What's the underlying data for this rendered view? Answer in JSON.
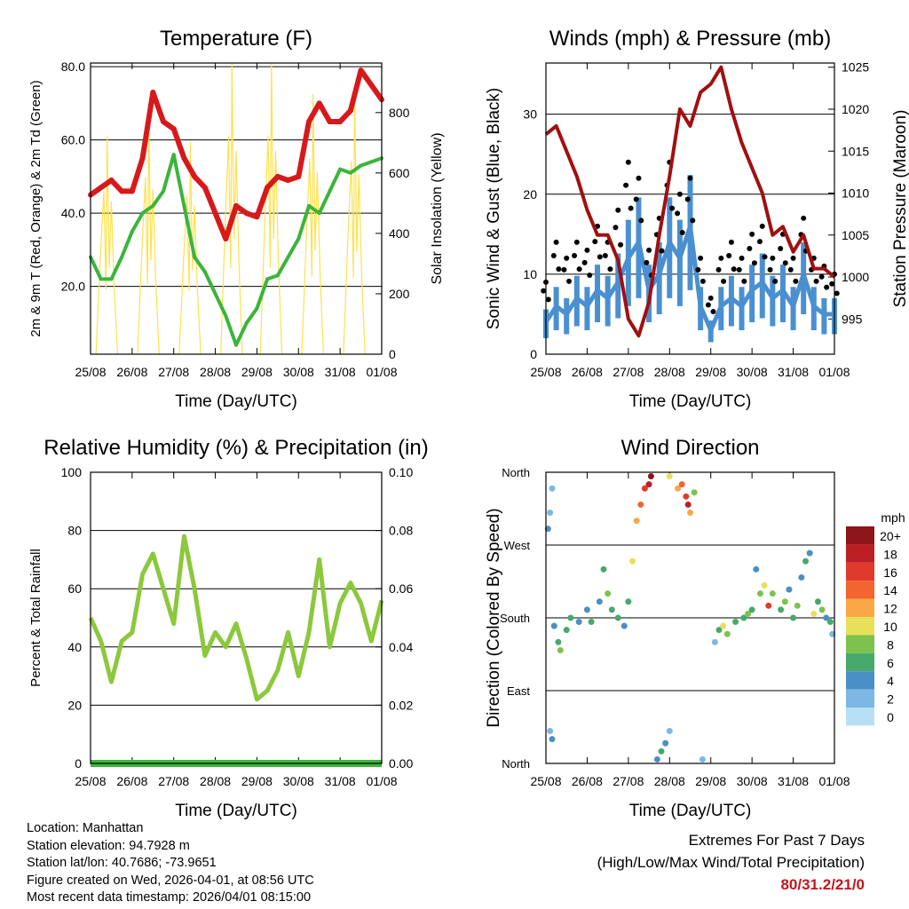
{
  "chart_data": [
    {
      "type": "line",
      "title": "Temperature (F)",
      "xlabel": "Time (Day/UTC)",
      "ylabel": "2m & 9m T (Red, Orange) & 2m Td (Green)",
      "ylabel_right": "Solar Insolation (Yellow)",
      "xticks": [
        "25/08",
        "26/08",
        "27/08",
        "28/08",
        "29/08",
        "30/08",
        "31/08",
        "01/08"
      ],
      "yticks": [
        "20.0",
        "40.0",
        "60.0",
        "80.0"
      ],
      "yticks_right": [
        "0",
        "200",
        "400",
        "600",
        "800"
      ],
      "ylim": [
        1.5,
        81
      ],
      "ylim_right": [
        0,
        964
      ],
      "grid": true,
      "x_days": [
        0,
        0.25,
        0.5,
        0.75,
        1,
        1.25,
        1.5,
        1.75,
        2,
        2.25,
        2.5,
        2.75,
        3,
        3.25,
        3.5,
        3.75,
        4,
        4.25,
        4.5,
        4.75,
        5,
        5.25,
        5.5,
        5.75,
        6,
        6.25,
        6.5,
        6.75,
        7
      ],
      "series": [
        {
          "name": "2m & 9m T",
          "color": "#d7191c",
          "values": [
            45,
            47,
            49,
            46,
            46,
            55,
            73,
            65,
            63,
            55,
            50,
            47,
            40,
            33,
            42,
            40,
            39,
            47,
            50,
            49,
            50,
            65,
            70,
            65,
            65,
            68,
            79,
            75,
            71
          ]
        },
        {
          "name": "2m Td",
          "color": "#3cb43c",
          "values": [
            28,
            22,
            22,
            28,
            35,
            40,
            42,
            46,
            56,
            42,
            28,
            24,
            18,
            12,
            4,
            10,
            14,
            22,
            23,
            28,
            33,
            42,
            40,
            46,
            52,
            51,
            53,
            54,
            55
          ]
        }
      ],
      "solar": {
        "color": "#ffe14a",
        "peak_days": [
          0.4,
          1.4,
          2.4,
          3.4,
          4.35,
          5.35,
          6.35
        ],
        "peaks": [
          720,
          780,
          700,
          960,
          960,
          860,
          850
        ]
      }
    },
    {
      "type": "line",
      "title": "Winds (mph) & Pressure (mb)",
      "xlabel": "Time (Day/UTC)",
      "ylabel": "Sonic Wind & Gust (Blue, Black)",
      "ylabel_right": "Station Pressure (Maroon)",
      "xticks": [
        "25/08",
        "26/08",
        "27/08",
        "28/08",
        "29/08",
        "30/08",
        "31/08",
        "01/08"
      ],
      "yticks": [
        "0",
        "10",
        "20",
        "30"
      ],
      "yticks_right": [
        "995",
        "1000",
        "1005",
        "1010",
        "1015",
        "1020",
        "1025"
      ],
      "ylim": [
        0,
        36.4
      ],
      "ylim_right": [
        990.8,
        1025.5
      ],
      "series": [
        {
          "name": "Wind",
          "color": "#4a90d0",
          "values": [
            4,
            6,
            5,
            7,
            6,
            8,
            7,
            9,
            12,
            14,
            8,
            10,
            14,
            12,
            16,
            6,
            3,
            6,
            7,
            6,
            8,
            9,
            7,
            8,
            6,
            10,
            6,
            5,
            5
          ]
        },
        {
          "name": "Gust",
          "color": "#000000",
          "values": [
            9,
            14,
            12,
            14,
            13,
            16,
            14,
            18,
            24,
            22,
            13,
            17,
            24,
            20,
            22,
            12,
            7,
            12,
            14,
            12,
            15,
            16,
            12,
            15,
            12,
            17,
            12,
            11,
            10
          ]
        },
        {
          "name": "Pressure",
          "color": "#a01010",
          "values": [
            1017,
            1018,
            1015,
            1012,
            1008,
            1005,
            1005,
            1002,
            995,
            993,
            997,
            1005,
            1012,
            1020,
            1018,
            1022,
            1023,
            1025,
            1020,
            1016,
            1013,
            1010,
            1005,
            1006,
            1003,
            1005,
            1001,
            1001,
            1000
          ]
        }
      ]
    },
    {
      "type": "line",
      "title": "Relative Humidity (%) & Precipitation (in)",
      "xlabel": "Time (Day/UTC)",
      "ylabel": "Percent & Total Rainfall",
      "xticks": [
        "25/08",
        "26/08",
        "27/08",
        "28/08",
        "29/08",
        "30/08",
        "31/08",
        "01/08"
      ],
      "yticks": [
        "0",
        "20",
        "40",
        "60",
        "80",
        "100"
      ],
      "yticks_right": [
        "0.00",
        "0.02",
        "0.04",
        "0.06",
        "0.08",
        "0.10"
      ],
      "ylim": [
        0,
        100
      ],
      "ylim_right": [
        0,
        0.1
      ],
      "series": [
        {
          "name": "RH",
          "color": "#8cc83c",
          "values": [
            50,
            42,
            28,
            42,
            45,
            65,
            72,
            60,
            48,
            78,
            60,
            37,
            45,
            40,
            48,
            36,
            22,
            25,
            32,
            45,
            30,
            45,
            70,
            40,
            55,
            62,
            55,
            42,
            56
          ]
        },
        {
          "name": "Precipitation",
          "color": "#3cb43c",
          "values": [
            0,
            0,
            0,
            0,
            0,
            0,
            0,
            0,
            0,
            0,
            0,
            0,
            0,
            0,
            0,
            0,
            0,
            0,
            0,
            0,
            0,
            0,
            0,
            0,
            0,
            0,
            0,
            0,
            0
          ]
        }
      ]
    },
    {
      "type": "scatter",
      "title": "Wind Direction",
      "xlabel": "Time (Day/UTC)",
      "ylabel": "Direction (Colored By Speed)",
      "xticks": [
        "25/08",
        "26/08",
        "27/08",
        "28/08",
        "29/08",
        "30/08",
        "31/08",
        "01/08"
      ],
      "yticks": [
        "North",
        "East",
        "South",
        "West",
        "North"
      ],
      "ylim": [
        0,
        360
      ],
      "legend": {
        "title": "mph",
        "labels": [
          "20+",
          "18",
          "16",
          "14",
          "12",
          "10",
          "8",
          "6",
          "4",
          "2",
          "0"
        ],
        "colors": [
          "#8e1519",
          "#bd1e24",
          "#e03a2c",
          "#f26430",
          "#f9a845",
          "#e8e05a",
          "#7dc24c",
          "#47a86c",
          "#4a8fc6",
          "#7cb8e3",
          "#b8e0f5"
        ],
        "placement": "right"
      },
      "points": [
        [
          0.05,
          290,
          4
        ],
        [
          0.1,
          310,
          3
        ],
        [
          0.15,
          340,
          2
        ],
        [
          0.1,
          40,
          3
        ],
        [
          0.15,
          30,
          4
        ],
        [
          0.2,
          170,
          4
        ],
        [
          0.3,
          150,
          6
        ],
        [
          0.35,
          140,
          8
        ],
        [
          0.5,
          165,
          7
        ],
        [
          0.6,
          180,
          6
        ],
        [
          0.8,
          175,
          5
        ],
        [
          1,
          190,
          4
        ],
        [
          1.1,
          175,
          6
        ],
        [
          1.3,
          200,
          5
        ],
        [
          1.4,
          240,
          7
        ],
        [
          1.5,
          210,
          8
        ],
        [
          1.6,
          190,
          6
        ],
        [
          1.75,
          180,
          6
        ],
        [
          1.9,
          170,
          4
        ],
        [
          2,
          200,
          6
        ],
        [
          2.1,
          250,
          10
        ],
        [
          2.2,
          300,
          12
        ],
        [
          2.3,
          320,
          14
        ],
        [
          2.4,
          340,
          16
        ],
        [
          2.5,
          345,
          18
        ],
        [
          2.55,
          355,
          20
        ],
        [
          2.7,
          5,
          5
        ],
        [
          2.8,
          15,
          6
        ],
        [
          2.9,
          25,
          4
        ],
        [
          3.0,
          40,
          3
        ],
        [
          3.0,
          355,
          10
        ],
        [
          3.2,
          340,
          12
        ],
        [
          3.3,
          345,
          14
        ],
        [
          3.4,
          330,
          16
        ],
        [
          3.45,
          320,
          18
        ],
        [
          3.5,
          310,
          12
        ],
        [
          3.6,
          335,
          8
        ],
        [
          3.8,
          5,
          3
        ],
        [
          4.1,
          150,
          2
        ],
        [
          4.2,
          165,
          6
        ],
        [
          4.3,
          170,
          10
        ],
        [
          4.4,
          160,
          8
        ],
        [
          4.6,
          175,
          7
        ],
        [
          4.8,
          180,
          6
        ],
        [
          4.9,
          185,
          8
        ],
        [
          5.0,
          190,
          6
        ],
        [
          5.1,
          240,
          4
        ],
        [
          5.2,
          210,
          8
        ],
        [
          5.3,
          220,
          10
        ],
        [
          5.4,
          195,
          16
        ],
        [
          5.5,
          210,
          8
        ],
        [
          5.7,
          190,
          6
        ],
        [
          5.8,
          200,
          8
        ],
        [
          5.9,
          215,
          5
        ],
        [
          6.0,
          180,
          6
        ],
        [
          6.1,
          195,
          8
        ],
        [
          6.2,
          230,
          4
        ],
        [
          6.3,
          250,
          6
        ],
        [
          6.4,
          260,
          5
        ],
        [
          6.5,
          185,
          10
        ],
        [
          6.6,
          200,
          6
        ],
        [
          6.7,
          190,
          8
        ],
        [
          6.8,
          180,
          4
        ],
        [
          6.9,
          175,
          6
        ],
        [
          6.95,
          160,
          3
        ]
      ]
    }
  ],
  "info": {
    "location": "Location: Manhattan",
    "elevation": "Station elevation: 94.7928 m",
    "latlon": "Station lat/lon: 40.7686; -73.9651",
    "created": "Figure created on Wed, 2026-04-01, at 08:56 UTC",
    "recent": "Most recent data timestamp: 2026/04/01 08:15:00"
  },
  "extremes": {
    "title": "Extremes For Past 7 Days",
    "subtitle": "(High/Low/Max Wind/Total Precipitation)",
    "values": "80/31.2/21/0"
  }
}
